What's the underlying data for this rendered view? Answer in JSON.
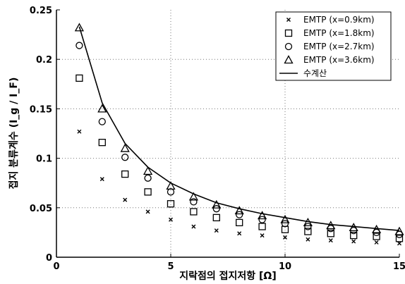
{
  "chart_data": {
    "type": "scatter",
    "xlabel": "지락점의 접지저항 [Ω]",
    "ylabel": "접지 분류계수 (I_g / I_F)",
    "xlim": [
      0,
      15
    ],
    "ylim": [
      0,
      0.25
    ],
    "xticks": [
      "0",
      "5",
      "10",
      "15"
    ],
    "xtick_values": [
      0,
      5,
      10,
      15
    ],
    "yticks": [
      "0",
      "0.05",
      "0.1",
      "0.15",
      "0.2",
      "0.25"
    ],
    "ytick_values": [
      0,
      0.05,
      0.1,
      0.15,
      0.2,
      0.25
    ],
    "grid": true,
    "legend_position": "top-right",
    "series": [
      {
        "name": "EMTP (x=0.9km)",
        "marker": "x",
        "x": [
          1,
          2,
          3,
          4,
          5,
          6,
          7,
          8,
          9,
          10,
          11,
          12,
          13,
          14,
          15
        ],
        "values": [
          0.127,
          0.079,
          0.058,
          0.046,
          0.038,
          0.031,
          0.027,
          0.024,
          0.022,
          0.02,
          0.018,
          0.017,
          0.016,
          0.015,
          0.014
        ]
      },
      {
        "name": "EMTP (x=1.8km)",
        "marker": "square",
        "x": [
          1,
          2,
          3,
          4,
          5,
          6,
          7,
          8,
          9,
          10,
          11,
          12,
          13,
          14,
          15
        ],
        "values": [
          0.181,
          0.116,
          0.084,
          0.066,
          0.054,
          0.046,
          0.04,
          0.035,
          0.031,
          0.028,
          0.026,
          0.024,
          0.022,
          0.021,
          0.019
        ]
      },
      {
        "name": "EMTP (x=2.7km)",
        "marker": "circle",
        "x": [
          1,
          2,
          3,
          4,
          5,
          6,
          7,
          8,
          9,
          10,
          11,
          12,
          13,
          14,
          15
        ],
        "values": [
          0.214,
          0.137,
          0.101,
          0.08,
          0.066,
          0.056,
          0.049,
          0.043,
          0.038,
          0.034,
          0.031,
          0.029,
          0.027,
          0.025,
          0.023
        ]
      },
      {
        "name": "EMTP (x=3.6km)",
        "marker": "triangle",
        "x": [
          1,
          2,
          3,
          4,
          5,
          6,
          7,
          8,
          9,
          10,
          11,
          12,
          13,
          14,
          15
        ],
        "values": [
          0.232,
          0.15,
          0.11,
          0.087,
          0.072,
          0.061,
          0.053,
          0.047,
          0.042,
          0.038,
          0.035,
          0.032,
          0.03,
          0.028,
          0.026
        ]
      },
      {
        "name": "수계산",
        "marker": "line",
        "x": [
          1,
          2,
          3,
          4,
          5,
          6,
          7,
          8,
          9,
          10,
          11,
          12,
          13,
          14,
          15
        ],
        "values": [
          0.233,
          0.156,
          0.115,
          0.091,
          0.075,
          0.064,
          0.055,
          0.049,
          0.044,
          0.04,
          0.036,
          0.033,
          0.031,
          0.029,
          0.027
        ]
      }
    ]
  }
}
